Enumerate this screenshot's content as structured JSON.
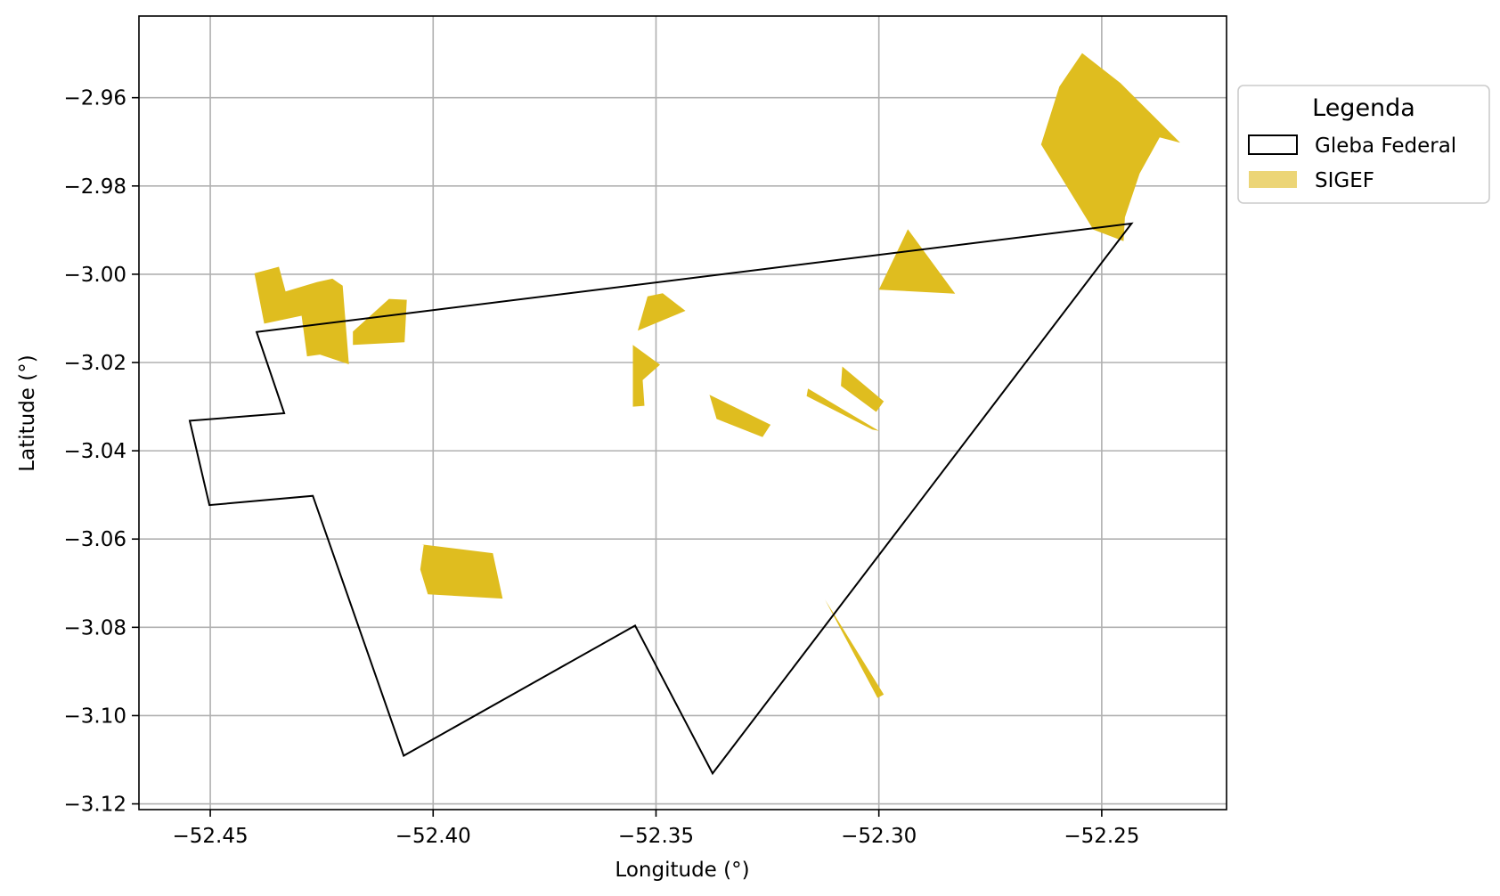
{
  "chart_data": {
    "type": "map",
    "xlabel": "Longitude (°)",
    "ylabel": "Latitude (°)",
    "xlim": [
      -52.466,
      -52.222
    ],
    "ylim": [
      -3.1213,
      -2.9415
    ],
    "xticks": [
      -52.45,
      -52.4,
      -52.35,
      -52.3,
      -52.25
    ],
    "yticks": [
      -2.96,
      -2.98,
      -3.0,
      -3.02,
      -3.04,
      -3.06,
      -3.08,
      -3.1,
      -3.12
    ],
    "xtick_labels": [
      "−52.45",
      "−52.40",
      "−52.35",
      "−52.30",
      "−52.25"
    ],
    "ytick_labels": [
      "−2.96",
      "−2.98",
      "−3.00",
      "−3.02",
      "−3.04",
      "−3.06",
      "−3.08",
      "−3.10",
      "−3.12"
    ],
    "grid": true,
    "legend": {
      "title": "Legenda",
      "placement": "upper-right-outside",
      "entries": [
        "Gleba Federal",
        "SIGEF"
      ]
    },
    "colors": {
      "gleba_stroke": "#000000",
      "sigef_fill": "#dfbd1f",
      "sigef_legend_fill": "#ecd577",
      "grid": "#b0b0b0"
    },
    "gleba_federal": [
      [
        -52.4396,
        -3.0131
      ],
      [
        -52.2433,
        -2.9885
      ],
      [
        -52.3373,
        -3.1131
      ],
      [
        -52.3547,
        -3.0796
      ],
      [
        -52.4066,
        -3.1091
      ],
      [
        -52.427,
        -3.0502
      ],
      [
        -52.4502,
        -3.0523
      ],
      [
        -52.4546,
        -3.0332
      ],
      [
        -52.4334,
        -3.0315
      ],
      [
        -52.4396,
        -3.0131
      ]
    ],
    "sigef": [
      [
        [
          -52.4401,
          -2.9998
        ],
        [
          -52.4346,
          -2.9983
        ],
        [
          -52.4331,
          -3.0039
        ],
        [
          -52.4261,
          -3.0018
        ],
        [
          -52.4226,
          -3.001
        ],
        [
          -52.4203,
          -3.0026
        ],
        [
          -52.4189,
          -3.0204
        ],
        [
          -52.4254,
          -3.0182
        ],
        [
          -52.4283,
          -3.0186
        ],
        [
          -52.4295,
          -3.0094
        ],
        [
          -52.4379,
          -3.0112
        ],
        [
          -52.4401,
          -2.9998
        ]
      ],
      [
        [
          -52.418,
          -3.013
        ],
        [
          -52.4099,
          -3.0056
        ],
        [
          -52.4059,
          -3.0058
        ],
        [
          -52.4064,
          -3.0154
        ],
        [
          -52.418,
          -3.016
        ],
        [
          -52.418,
          -3.013
        ]
      ],
      [
        [
          -52.4026,
          -3.0612
        ],
        [
          -52.3866,
          -3.0632
        ],
        [
          -52.3844,
          -3.0735
        ],
        [
          -52.4012,
          -3.0725
        ],
        [
          -52.4029,
          -3.0669
        ],
        [
          -52.4021,
          -3.0612
        ]
      ],
      [
        [
          -52.3519,
          -3.005
        ],
        [
          -52.3485,
          -3.0043
        ],
        [
          -52.3434,
          -3.0083
        ],
        [
          -52.3541,
          -3.0128
        ],
        [
          -52.3519,
          -3.005
        ]
      ],
      [
        [
          -52.3552,
          -3.016
        ],
        [
          -52.3491,
          -3.0205
        ],
        [
          -52.353,
          -3.024
        ],
        [
          -52.3526,
          -3.0298
        ],
        [
          -52.3552,
          -3.03
        ],
        [
          -52.3552,
          -3.016
        ]
      ],
      [
        [
          -52.338,
          -3.0273
        ],
        [
          -52.3243,
          -3.0341
        ],
        [
          -52.3261,
          -3.0369
        ],
        [
          -52.3364,
          -3.0328
        ],
        [
          -52.338,
          -3.0273
        ]
      ],
      [
        [
          -52.3159,
          -3.0259
        ],
        [
          -52.3,
          -3.0355
        ],
        [
          -52.3015,
          -3.0352
        ],
        [
          -52.3162,
          -3.0276
        ],
        [
          -52.3159,
          -3.0259
        ]
      ],
      [
        [
          -52.3082,
          -3.0209
        ],
        [
          -52.2989,
          -3.0288
        ],
        [
          -52.3006,
          -3.0312
        ],
        [
          -52.3085,
          -3.0253
        ],
        [
          -52.3082,
          -3.0209
        ]
      ],
      [
        [
          -52.2935,
          -2.9898
        ],
        [
          -52.2829,
          -3.0044
        ],
        [
          -52.3,
          -3.0035
        ],
        [
          -52.2935,
          -2.9898
        ]
      ],
      [
        [
          -52.3121,
          -3.0737
        ],
        [
          -52.3003,
          -3.096
        ],
        [
          -52.2989,
          -3.0952
        ],
        [
          -52.3121,
          -3.0737
        ]
      ],
      [
        [
          -52.2544,
          -2.9499
        ],
        [
          -52.2458,
          -2.9567
        ],
        [
          -52.2324,
          -2.9702
        ],
        [
          -52.237,
          -2.969
        ],
        [
          -52.2415,
          -2.9772
        ],
        [
          -52.2448,
          -2.9871
        ],
        [
          -52.2451,
          -2.9925
        ],
        [
          -52.2519,
          -2.9899
        ],
        [
          -52.2636,
          -2.9706
        ],
        [
          -52.2595,
          -2.9575
        ],
        [
          -52.2544,
          -2.9499
        ]
      ]
    ]
  }
}
